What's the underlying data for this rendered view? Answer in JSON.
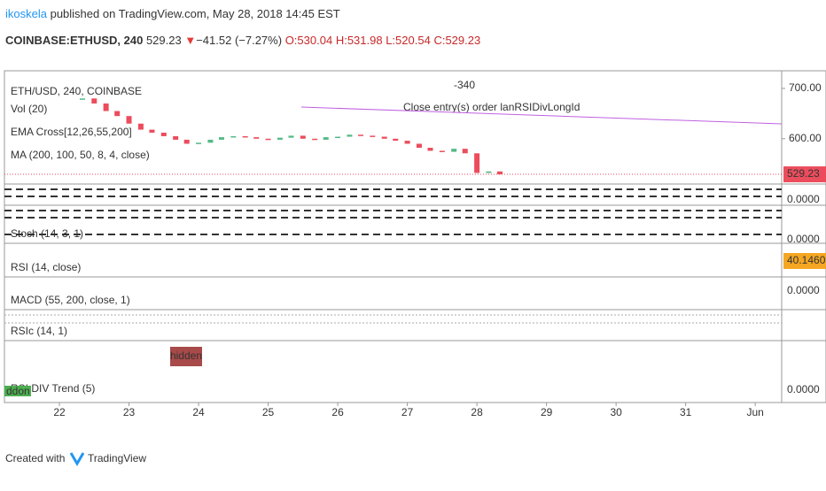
{
  "header": {
    "author": "ikoskela",
    "published": "published on TradingView.com, May 28, 2018 14:45 EST",
    "symbol": "COINBASE:ETHUSD, 240",
    "last": "529.23",
    "arrow": "▼",
    "change": "−41.52 (−7.27%)",
    "open": "O:530.04",
    "high": "H:531.98",
    "low": "L:520.54",
    "close": "C:529.23"
  },
  "chart_data": {
    "type": "candlestick",
    "x": [
      22.33,
      22.5,
      22.67,
      22.83,
      23,
      23.17,
      23.33,
      23.5,
      23.67,
      23.83,
      24,
      24.17,
      24.33,
      24.5,
      24.67,
      24.83,
      25,
      25.17,
      25.33,
      25.5,
      25.67,
      25.83,
      26,
      26.17,
      26.33,
      26.5,
      26.67,
      26.83,
      27,
      27.17,
      27.33,
      27.5,
      27.67,
      27.83,
      28,
      28.17,
      28.33
    ],
    "series": [
      {
        "name": "ETH/USD, 240, COINBASE",
        "up_color": "#53b987",
        "down_color": "#eb4d5c",
        "values": [
          680,
          670,
          655,
          645,
          630,
          618,
          612,
          605,
          598,
          590,
          592,
          598,
          603,
          605,
          603,
          600,
          598,
          602,
          606,
          600,
          598,
          603,
          604,
          608,
          606,
          604,
          600,
          596,
          590,
          582,
          576,
          574,
          580,
          571,
          532,
          535,
          529.23
        ]
      }
    ],
    "xlim": [
      21.21,
      32.38
    ],
    "xticks": [
      22,
      23,
      24,
      25,
      26,
      27,
      28,
      29,
      30,
      31,
      {
        "value": 32,
        "label": "Jun"
      }
    ],
    "ylim": [
      510,
      735
    ],
    "yticks": [
      {
        "value": 700,
        "label": "700.00"
      },
      {
        "value": 600,
        "label": "600.00"
      }
    ],
    "annotations": [
      "-340",
      "Close entry(s) order lanRSIDivLongId"
    ]
  },
  "main_labels": [
    "Vol (20)",
    "EMA Cross[12,26,55,200]",
    "MA (200, 100, 50, 8, 4, close)"
  ],
  "panes": [
    {
      "label": "",
      "axis_label": "0.0000"
    },
    {
      "label": "Stoch (14, 3, 1)",
      "axis_label": "0.0000"
    },
    {
      "label": "RSI (14, close)",
      "axis_label": "40.1460"
    },
    {
      "label": "MACD (55, 200, close, 1)",
      "axis_label": "0.0000"
    },
    {
      "label": "RSIc (14, 1)",
      "axis_label": ""
    },
    {
      "label": "RSI DIV Trend (5)",
      "axis_label": "0.0000"
    }
  ],
  "markers": [
    "hidden",
    "ddon"
  ],
  "footer": {
    "created": "Created with",
    "brand": "TradingView"
  }
}
